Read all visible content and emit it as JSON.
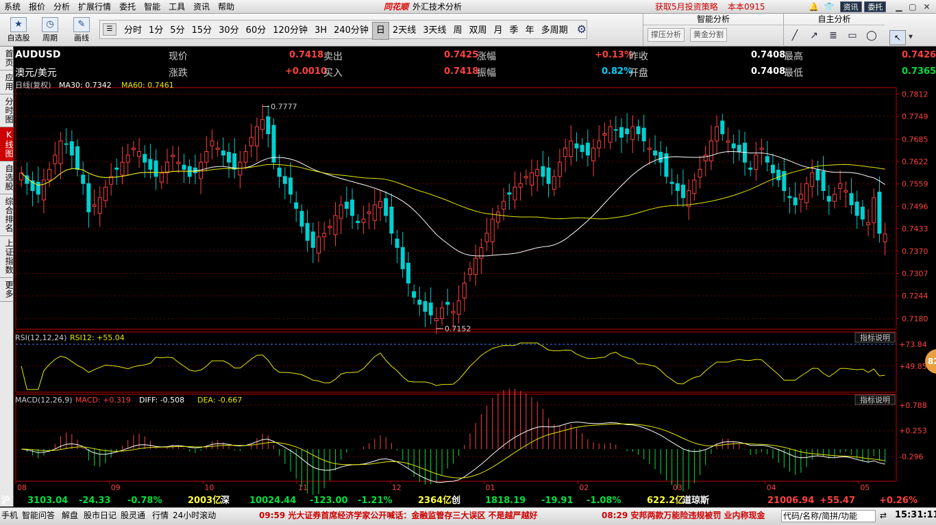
{
  "menu": [
    "系统",
    "报价",
    "分析",
    "扩展行情",
    "委托",
    "智能",
    "工具",
    "资讯",
    "帮助"
  ],
  "brand": {
    "logo": "同花顺",
    "title": "外汇技术分析"
  },
  "promo": "获取5月投资策略",
  "topright": {
    "version": "本本0915",
    "news": "资讯",
    "trade": "委托"
  },
  "toolbar": {
    "left": [
      {
        "label": "自选股",
        "icon": "star-icon"
      },
      {
        "label": "周期",
        "icon": "clock-icon"
      },
      {
        "label": "画线",
        "icon": "pen-icon"
      }
    ],
    "periods": [
      "分时",
      "1分",
      "5分",
      "15分",
      "30分",
      "60分",
      "120分钟",
      "3H",
      "240分钟",
      "日",
      "2天线",
      "3天线",
      "周",
      "双周",
      "月",
      "季",
      "年",
      "多周期"
    ],
    "active_period": "日",
    "smart": {
      "title": "智能分析",
      "btn1": "撑压分析",
      "btn2": "黄金分割"
    },
    "selfa": {
      "title": "自主分析"
    }
  },
  "lefttabs": [
    "首页",
    "应用",
    "分时图",
    "K线图",
    "自选股",
    "综合排名",
    "上证指数",
    "更多"
  ],
  "quote": {
    "symbol": "AUDUSD",
    "name": "澳元/美元",
    "l1": "现价",
    "v1": "0.7418",
    "l2": "卖出",
    "v2": "0.7425",
    "l3": "涨幅",
    "v3": "+0.13%",
    "l4": "昨收",
    "v4": "0.7408",
    "l5": "最高",
    "v5": "0.7426",
    "m1": "涨跌",
    "w1": "+0.0010",
    "m2": "买入",
    "w2": "0.7418",
    "m3": "振幅",
    "w3": "0.82%",
    "m4": "开盘",
    "w4": "0.7408",
    "m5": "最低",
    "w5": "0.7365"
  },
  "colors": {
    "up": "#ff4040",
    "down": "#00d0d0",
    "ma30": "#ffffff",
    "ma60": "#e8e800",
    "green": "#00e040",
    "grid": "#800000",
    "axis": "#c00000"
  },
  "chart_data": [
    {
      "type": "candlestick",
      "title": "日线(复权)",
      "ma_labels": [
        "MA30: 0.7342",
        "MA60: 0.7461"
      ],
      "y_ticks": [
        "0.7812",
        "0.7749",
        "0.7685",
        "0.7622",
        "0.7559",
        "0.7496",
        "0.7433",
        "0.7370",
        "0.7307",
        "0.7244",
        "0.7180"
      ],
      "ylim": [
        0.715,
        0.783
      ],
      "x_ticks": [
        "08",
        "09",
        "10",
        "11",
        "12",
        "01",
        "02",
        "03",
        "04",
        "05"
      ],
      "annotations": [
        "0.7777",
        "0.7152"
      ],
      "close": [
        0.759,
        0.756,
        0.754,
        0.753,
        0.757,
        0.76,
        0.764,
        0.768,
        0.767,
        0.764,
        0.76,
        0.756,
        0.748,
        0.75,
        0.752,
        0.755,
        0.758,
        0.76,
        0.762,
        0.764,
        0.766,
        0.765,
        0.762,
        0.76,
        0.758,
        0.759,
        0.762,
        0.764,
        0.762,
        0.76,
        0.758,
        0.759,
        0.762,
        0.765,
        0.768,
        0.766,
        0.764,
        0.762,
        0.76,
        0.762,
        0.765,
        0.769,
        0.772,
        0.774,
        0.77,
        0.762,
        0.758,
        0.756,
        0.753,
        0.749,
        0.744,
        0.74,
        0.738,
        0.741,
        0.742,
        0.744,
        0.747,
        0.75,
        0.749,
        0.747,
        0.745,
        0.746,
        0.748,
        0.75,
        0.751,
        0.747,
        0.742,
        0.738,
        0.732,
        0.728,
        0.724,
        0.722,
        0.72,
        0.719,
        0.718,
        0.721,
        0.722,
        0.72,
        0.723,
        0.728,
        0.732,
        0.735,
        0.738,
        0.742,
        0.746,
        0.748,
        0.751,
        0.753,
        0.755,
        0.756,
        0.758,
        0.759,
        0.76,
        0.758,
        0.756,
        0.758,
        0.762,
        0.766,
        0.768,
        0.766,
        0.765,
        0.764,
        0.766,
        0.768,
        0.77,
        0.772,
        0.771,
        0.769,
        0.77,
        0.772,
        0.77,
        0.768,
        0.766,
        0.764,
        0.762,
        0.758,
        0.756,
        0.754,
        0.752,
        0.754,
        0.757,
        0.76,
        0.764,
        0.768,
        0.772,
        0.77,
        0.768,
        0.766,
        0.765,
        0.762,
        0.76,
        0.764,
        0.766,
        0.762,
        0.759,
        0.757,
        0.754,
        0.752,
        0.75,
        0.753,
        0.756,
        0.759,
        0.757,
        0.754,
        0.751,
        0.753,
        0.756,
        0.754,
        0.75,
        0.747,
        0.746,
        0.745,
        0.752,
        0.742,
        0.7418
      ]
    },
    {
      "type": "line",
      "title": "RSI(12,12,24)",
      "values_label": "RSI12: +55.04",
      "y_ticks": [
        "+73.84",
        "+49.85"
      ],
      "help": "指标说明"
    },
    {
      "type": "bar+line",
      "title": "MACD(12,26,9)",
      "macd_label": "MACD: +0.319",
      "diff_label": "DIFF: -0.508",
      "dea_label": "DEA: -0.667",
      "y_ticks": [
        "+0.788",
        "+0.253",
        "-0.296"
      ],
      "help": "指标说明"
    }
  ],
  "bottom": {
    "sh": "沪",
    "sh_val": "3103.04",
    "sh_chg": "-24.33",
    "sh_pct": "-0.78%",
    "sh_amt": "2003亿",
    "sz": "深",
    "sz_val": "10024.44",
    "sz_chg": "-123.00",
    "sz_pct": "-1.21%",
    "sz_amt": "2364亿",
    "cy": "创",
    "cy_val": "1818.19",
    "cy_chg": "-19.91",
    "cy_pct": "-1.08%",
    "cy_amt": "622.2亿",
    "dj": "道琼斯",
    "dj_val": "21006.94",
    "dj_chg": "+55.47",
    "dj_pct": "+0.26%"
  },
  "status": {
    "items": [
      "手机",
      "智能问答",
      "解盘",
      "股市日记",
      "股灵通",
      "行情",
      "24小时滚动"
    ],
    "news1": "09:59 光大证券首席经济学家公开喊话：金融监管存三大误区 不是越严越好",
    "news2": "08:29 安邦两款万能险违规被罚 业内称现金",
    "search": "代码/名称/简拼/功能",
    "clock": "15:31:11"
  },
  "badge": "82"
}
